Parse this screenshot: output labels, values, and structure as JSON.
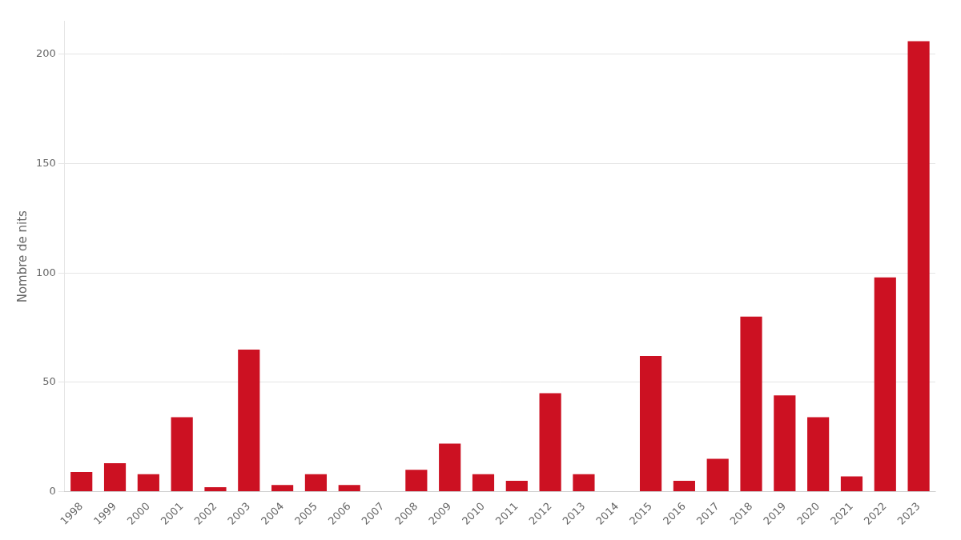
{
  "chart_data": {
    "type": "bar",
    "categories": [
      "1998",
      "1999",
      "2000",
      "2001",
      "2002",
      "2003",
      "2004",
      "2005",
      "2006",
      "2007",
      "2008",
      "2009",
      "2010",
      "2011",
      "2012",
      "2013",
      "2014",
      "2015",
      "2016",
      "2017",
      "2018",
      "2019",
      "2020",
      "2021",
      "2022",
      "2023"
    ],
    "values": [
      9,
      13,
      8,
      34,
      2,
      65,
      3,
      8,
      3,
      0,
      10,
      22,
      8,
      5,
      45,
      8,
      0,
      62,
      5,
      15,
      80,
      44,
      34,
      7,
      98,
      206
    ],
    "color": "#cc1122",
    "ylabel": "Nombre de nits",
    "ylim": [
      0,
      215
    ],
    "yticks": [
      0,
      50,
      100,
      150,
      200
    ],
    "grid": true
  }
}
